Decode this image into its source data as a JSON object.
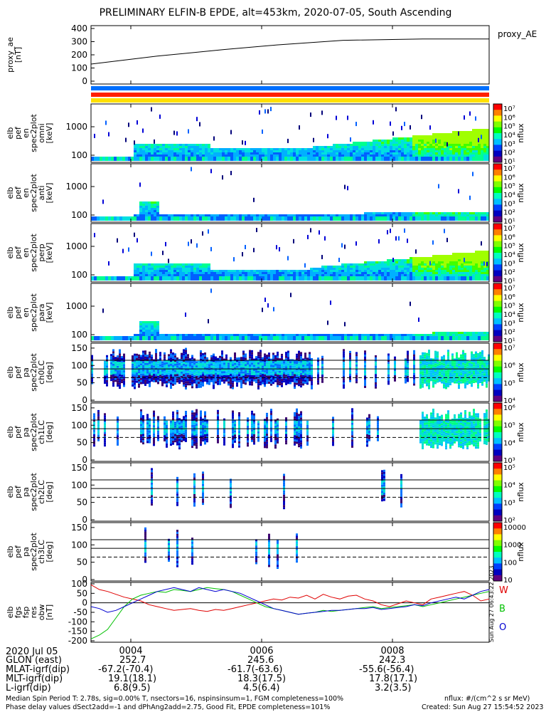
{
  "title": "PRELIMINARY ELFIN-B EPDE, alt=453km, 2020-07-05, South Ascending",
  "chart_data": [
    {
      "type": "line",
      "ylabel": "proxy_ae [nT]",
      "legend": "proxy_AE",
      "ylim": [
        0,
        400
      ],
      "yticks": [
        "400",
        "300",
        "200",
        "100",
        "0"
      ],
      "x_minutes": [
        0,
        10,
        20,
        28,
        38,
        50,
        60
      ],
      "values": [
        130,
        190,
        240,
        275,
        310,
        320,
        320
      ]
    },
    {
      "type": "heatmap",
      "ylabel": "elb pef en spec2plot omni [keV]",
      "yticks": [
        "1000",
        "100"
      ],
      "colorbar_label": "nflux",
      "colorbar_ticks": [
        "10⁷",
        "10⁶",
        "10⁵",
        "10⁴",
        "10³",
        "10²",
        "10¹"
      ]
    },
    {
      "type": "heatmap",
      "ylabel": "elb pef en spec2plot anti [keV]",
      "yticks": [
        "1000",
        "100"
      ],
      "colorbar_label": "nflux",
      "colorbar_ticks": [
        "10⁷",
        "10⁶",
        "10⁵",
        "10⁴",
        "10³",
        "10²",
        "10¹"
      ]
    },
    {
      "type": "heatmap",
      "ylabel": "elb pef en spec2plot perp [keV]",
      "yticks": [
        "1000",
        "100"
      ],
      "colorbar_label": "nflux",
      "colorbar_ticks": [
        "10⁷",
        "10⁶",
        "10⁵",
        "10⁴",
        "10³",
        "10²",
        "10¹"
      ]
    },
    {
      "type": "heatmap",
      "ylabel": "elb pef en spec2plot para [keV]",
      "yticks": [
        "1000",
        "100"
      ],
      "colorbar_label": "nflux",
      "colorbar_ticks": [
        "10⁷",
        "10⁶",
        "10⁵",
        "10⁴",
        "10³",
        "10²",
        "10¹"
      ]
    },
    {
      "type": "heatmap",
      "ylabel": "elb pef pa spec2plot ch0LC [deg]",
      "yticks": [
        "150",
        "100",
        "50",
        "0"
      ],
      "colorbar_label": "nflux",
      "colorbar_ticks": [
        "10⁷",
        "10⁶",
        "10⁵",
        "10⁴"
      ]
    },
    {
      "type": "heatmap",
      "ylabel": "elb pef pa spec2plot ch1LC [deg]",
      "yticks": [
        "150",
        "100",
        "50",
        "0"
      ],
      "colorbar_label": "nflux",
      "colorbar_ticks": [
        "10⁶",
        "10⁵",
        "10⁴",
        "10³"
      ]
    },
    {
      "type": "heatmap",
      "ylabel": "elb pef pa spec2plot ch2LC [deg]",
      "yticks": [
        "150",
        "100",
        "50",
        "0"
      ],
      "colorbar_label": "nflux",
      "colorbar_ticks": [
        "10⁵",
        "10⁴",
        "10³",
        "10²"
      ]
    },
    {
      "type": "heatmap",
      "ylabel": "elb pef pa spec2plot ch3LC [deg]",
      "yticks": [
        "150",
        "100",
        "50",
        "0"
      ],
      "colorbar_label": "nflux",
      "colorbar_ticks": [
        "10000",
        "1000",
        "100",
        "10"
      ]
    },
    {
      "type": "line",
      "ylabel": "elb fgs fsp res obw [nT]",
      "ylim": [
        -200,
        100
      ],
      "yticks": [
        "100",
        "50",
        "0",
        "-50",
        "-100",
        "-150",
        "-200"
      ],
      "legend": [
        "W",
        "B",
        "O"
      ],
      "series": [
        {
          "name": "W",
          "color": "#e00000",
          "values": [
            95,
            70,
            60,
            45,
            30,
            20,
            10,
            -10,
            -20,
            -30,
            -40,
            -35,
            -30,
            -40,
            -45,
            -35,
            -40,
            -30,
            -20,
            -10,
            0,
            10,
            20,
            15,
            30,
            25,
            40,
            20,
            45,
            30,
            20,
            35,
            40,
            20,
            10,
            -10,
            -20,
            -5,
            10,
            0,
            -10,
            20,
            30,
            40,
            50,
            60,
            40,
            10,
            20
          ]
        },
        {
          "name": "B",
          "color": "#00c000",
          "values": [
            -190,
            -170,
            -140,
            -80,
            -20,
            20,
            40,
            50,
            60,
            55,
            70,
            65,
            60,
            70,
            80,
            75,
            70,
            60,
            40,
            20,
            0,
            -20,
            -30,
            -40,
            -50,
            -60,
            -55,
            -50,
            -40,
            -45,
            -40,
            -35,
            -30,
            -25,
            -20,
            -30,
            -25,
            -20,
            -15,
            -10,
            -20,
            -10,
            0,
            10,
            20,
            30,
            40,
            50,
            60
          ]
        },
        {
          "name": "O",
          "color": "#0000d0",
          "values": [
            -20,
            -30,
            -50,
            -40,
            -20,
            0,
            20,
            40,
            60,
            70,
            80,
            70,
            60,
            80,
            70,
            60,
            70,
            60,
            50,
            30,
            10,
            -10,
            -30,
            -40,
            -50,
            -60,
            -55,
            -50,
            -45,
            -40,
            -40,
            -35,
            -30,
            -30,
            -25,
            -35,
            -30,
            -25,
            -20,
            -10,
            -15,
            0,
            10,
            20,
            30,
            20,
            40,
            60,
            70
          ]
        }
      ]
    }
  ],
  "x_ticks": [
    "0004",
    "0006",
    "0008"
  ],
  "ephemeris": {
    "labels": [
      "2020 Jul 05",
      "GLON (east)",
      "MLAT-igrf(dip)",
      "MLT-igrf(dip)",
      "L-igrf(dip)"
    ],
    "col1": [
      "",
      "252.7",
      "-67.2(-70.4)",
      "19.1(18.1)",
      "6.8(9.5)"
    ],
    "col2": [
      "",
      "245.6",
      "-61.7(-63.6)",
      "18.3(17.5)",
      "4.5(6.4)"
    ],
    "col3": [
      "",
      "242.3",
      "-55.6(-56.4)",
      "17.8(17.1)",
      "3.2(3.5)"
    ]
  },
  "footer": {
    "line1": "Median Spin Period T: 2.78s, sig=0.00% T, nsectors=16, nspinsinsum=1, FGM completeness=100%",
    "line2": "Phase delay values dSect2add=-1 and dPhAng2add=2.75, Good Fit, EPDE completeness=101%",
    "right1": "nflux: #/(cm^2 s sr MeV)",
    "right2": "Created: Sun Aug 27 15:54:52 2023",
    "vertical": "Sun Aug 27 06:43:22 2023"
  }
}
